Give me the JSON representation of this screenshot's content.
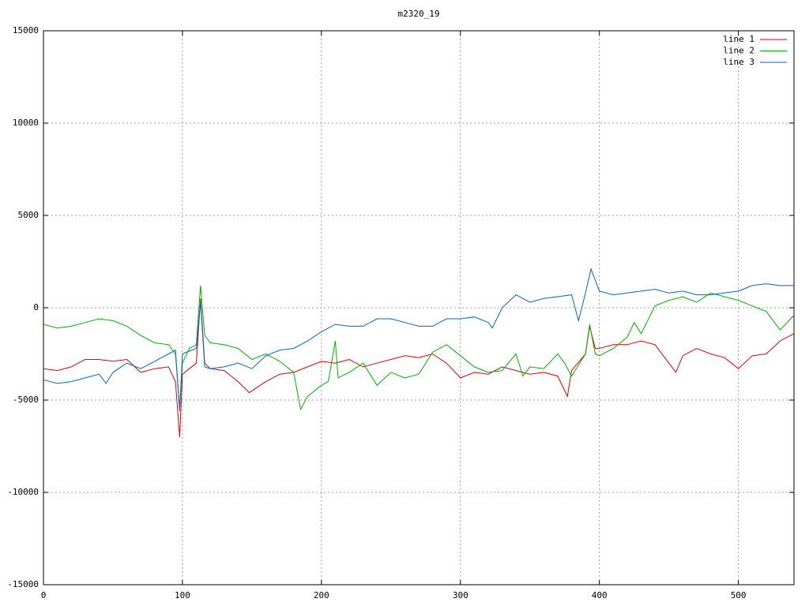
{
  "chart_data": {
    "type": "line",
    "title": "m2320_19",
    "xlim": [
      0,
      540
    ],
    "xticks": [
      0,
      100,
      200,
      300,
      400,
      500
    ],
    "ylim": [
      -15000,
      15000
    ],
    "yticks": [
      -15000,
      -10000,
      -5000,
      0,
      5000,
      10000,
      15000
    ],
    "grid": true,
    "legend": "top-right",
    "series": [
      {
        "name": "line 1",
        "color": "#e00000",
        "x": [
          0,
          10,
          20,
          30,
          40,
          50,
          60,
          70,
          80,
          90,
          95,
          98,
          100,
          105,
          110,
          113,
          116,
          120,
          130,
          140,
          148,
          160,
          170,
          180,
          190,
          200,
          210,
          220,
          230,
          240,
          250,
          260,
          270,
          280,
          290,
          300,
          310,
          320,
          330,
          340,
          350,
          360,
          370,
          377,
          380,
          390,
          393,
          397,
          400,
          410,
          420,
          430,
          440,
          450,
          455,
          460,
          470,
          480,
          490,
          500,
          510,
          520,
          530,
          540
        ],
        "values": [
          -3300,
          -3400,
          -3200,
          -2800,
          -2800,
          -2900,
          -2800,
          -3500,
          -3300,
          -3200,
          -4000,
          -7000,
          -3600,
          -3300,
          -3000,
          500,
          -3000,
          -3300,
          -3400,
          -4000,
          -4600,
          -4000,
          -3600,
          -3500,
          -3200,
          -2900,
          -3000,
          -2800,
          -3200,
          -3000,
          -2800,
          -2600,
          -2700,
          -2500,
          -3000,
          -3800,
          -3500,
          -3600,
          -3200,
          -3400,
          -3600,
          -3500,
          -3700,
          -4800,
          -3400,
          -2500,
          -1000,
          -2200,
          -2200,
          -2000,
          -2000,
          -1800,
          -2000,
          -3000,
          -3500,
          -2600,
          -2200,
          -2500,
          -2700,
          -3300,
          -2600,
          -2500,
          -1800,
          -1400
        ]
      },
      {
        "name": "line 2",
        "color": "#00b000",
        "x": [
          0,
          10,
          20,
          30,
          40,
          50,
          60,
          70,
          80,
          90,
          95,
          98,
          100,
          105,
          110,
          113,
          116,
          120,
          130,
          140,
          150,
          160,
          170,
          180,
          185,
          190,
          200,
          205,
          210,
          212,
          220,
          230,
          240,
          250,
          260,
          270,
          280,
          290,
          300,
          310,
          320,
          330,
          340,
          345,
          350,
          360,
          370,
          375,
          380,
          390,
          393,
          397,
          400,
          410,
          420,
          425,
          430,
          440,
          450,
          460,
          470,
          480,
          490,
          500,
          510,
          520,
          530,
          540
        ],
        "values": [
          -900,
          -1100,
          -1000,
          -800,
          -600,
          -700,
          -1000,
          -1500,
          -1900,
          -2000,
          -2500,
          -5400,
          -3000,
          -2200,
          -2000,
          1200,
          -1500,
          -1900,
          -2000,
          -2200,
          -2800,
          -2500,
          -2900,
          -3500,
          -5500,
          -4800,
          -4200,
          -4000,
          -1800,
          -3800,
          -3500,
          -3000,
          -4200,
          -3500,
          -3800,
          -3600,
          -2400,
          -2000,
          -2600,
          -3200,
          -3500,
          -3400,
          -2500,
          -3700,
          -3200,
          -3300,
          -2500,
          -3000,
          -3700,
          -2500,
          -900,
          -2500,
          -2600,
          -2200,
          -1600,
          -800,
          -1400,
          100,
          400,
          600,
          300,
          800,
          600,
          400,
          100,
          -200,
          -1200,
          -400
        ]
      },
      {
        "name": "line 3",
        "color": "#0066cc",
        "x": [
          0,
          10,
          20,
          30,
          40,
          45,
          50,
          60,
          70,
          80,
          90,
          95,
          98,
          100,
          110,
          113,
          116,
          120,
          130,
          140,
          150,
          160,
          170,
          180,
          190,
          200,
          210,
          220,
          230,
          240,
          250,
          260,
          270,
          280,
          290,
          300,
          310,
          320,
          323,
          330,
          340,
          350,
          360,
          370,
          380,
          385,
          390,
          394,
          400,
          410,
          420,
          430,
          440,
          450,
          460,
          470,
          480,
          490,
          500,
          510,
          520,
          530,
          540
        ],
        "values": [
          -3900,
          -4100,
          -4000,
          -3800,
          -3600,
          -4100,
          -3500,
          -3000,
          -3300,
          -2900,
          -2500,
          -2300,
          -5600,
          -2500,
          -2200,
          300,
          -3200,
          -3300,
          -3200,
          -3000,
          -3300,
          -2600,
          -2300,
          -2200,
          -1800,
          -1300,
          -900,
          -1000,
          -1000,
          -600,
          -600,
          -800,
          -1000,
          -1000,
          -600,
          -600,
          -500,
          -800,
          -1100,
          0,
          700,
          300,
          500,
          600,
          700,
          -700,
          800,
          2100,
          900,
          700,
          800,
          900,
          1000,
          800,
          900,
          700,
          700,
          800,
          900,
          1200,
          1300,
          1200,
          1200
        ]
      }
    ]
  }
}
